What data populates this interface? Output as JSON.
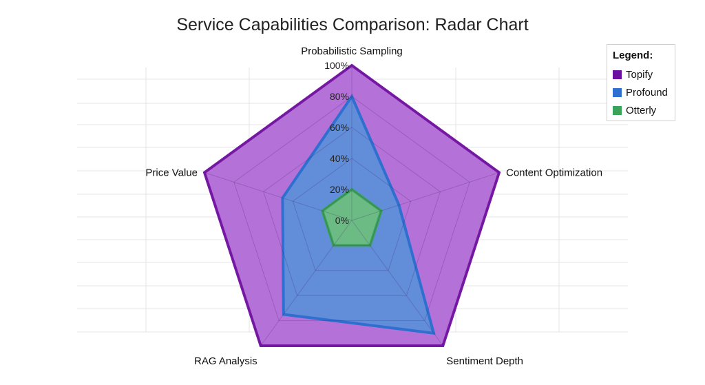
{
  "chart_data": {
    "type": "radar",
    "title": "Service Capabilities Comparison: Radar Chart",
    "axes": [
      "Probabilistic Sampling",
      "Content Optimization",
      "Sentiment Depth",
      "RAG Analysis",
      "Price Value"
    ],
    "r_ticks": [
      "0%",
      "20%",
      "40%",
      "60%",
      "80%",
      "100%"
    ],
    "r_range": [
      0,
      100
    ],
    "legend_title": "Legend:",
    "legend_position": "top-right",
    "grid": true,
    "series": [
      {
        "name": "Topify",
        "values": [
          100,
          100,
          100,
          100,
          100
        ],
        "color": "#7a1aa8",
        "fill": "#b06ad6"
      },
      {
        "name": "Profound",
        "values": [
          80,
          32,
          90,
          75,
          47
        ],
        "color": "#2f6fd0",
        "fill": "#5b8fd9"
      },
      {
        "name": "Otterly",
        "values": [
          20,
          20,
          20,
          20,
          20
        ],
        "color": "#3aa35a",
        "fill": "#6cbf7e"
      }
    ]
  }
}
